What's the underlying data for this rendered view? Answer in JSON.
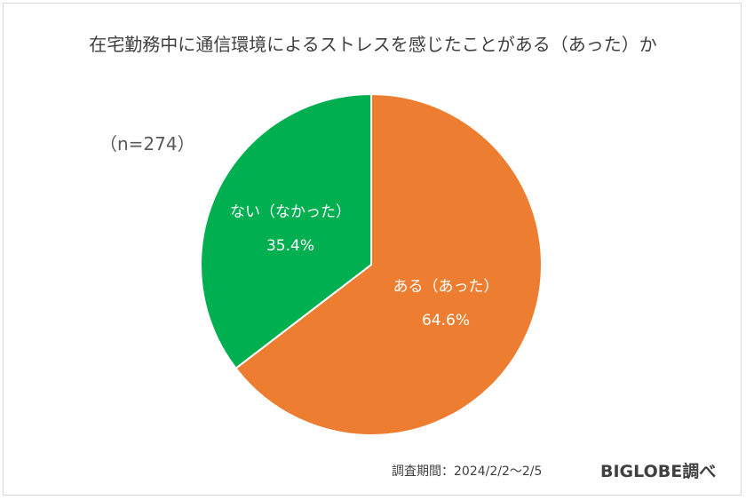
{
  "chart_data": {
    "type": "pie",
    "title": "在宅勤務中に通信環境によるストレスを感じたことがある（あった）か",
    "annotation": "（n=274）",
    "slices": [
      {
        "label": "ある（あった）",
        "value": 64.6,
        "display": "64.6%",
        "color": "#ED7D31"
      },
      {
        "label": "ない（なかった）",
        "value": 35.4,
        "display": "35.4%",
        "color": "#00B050"
      }
    ],
    "start": "12 o'clock",
    "direction": "clockwise",
    "legend": "none"
  },
  "footer": {
    "period": "調査期間：2024/2/2～2/5",
    "brand": "BIGLOBE調べ"
  }
}
